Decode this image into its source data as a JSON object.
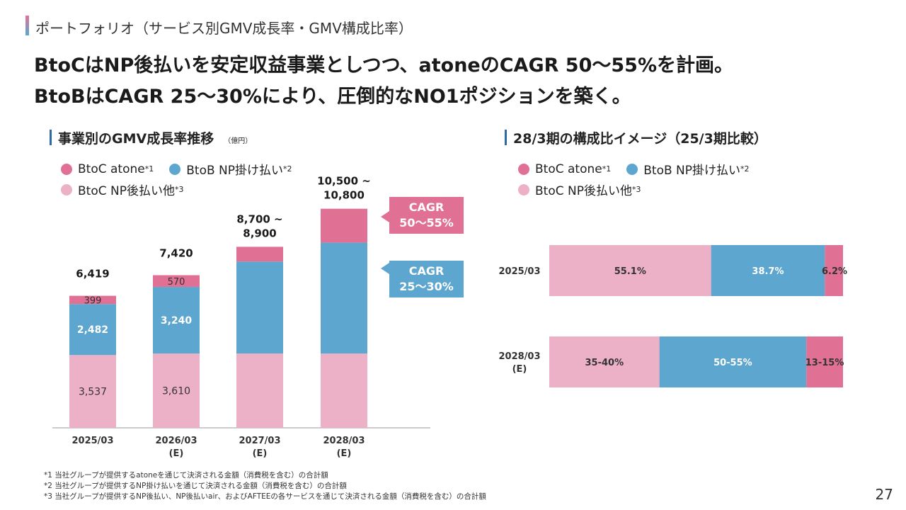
{
  "header": {
    "section_title": "ポートフォリオ（サービス別GMV成長率・GMV構成比率）",
    "headline_line1": "BtoCはNP後払いを安定収益事業としつつ、atoneのCAGR 50〜55%を計画。",
    "headline_line2": "BtoBはCAGR 25〜30%により、圧倒的なNO1ポジションを築く。"
  },
  "left_panel": {
    "title": "事業別のGMV成長率推移",
    "unit": "（億円）"
  },
  "right_panel": {
    "title": "28/3期の構成比イメージ（25/3期比較）"
  },
  "legend": {
    "atone": {
      "label": "BtoC atone",
      "note": "*1"
    },
    "btob": {
      "label": "BtoB NP掛け払い",
      "note": "*2"
    },
    "np": {
      "label": "BtoC NP後払い他",
      "note": "*3"
    }
  },
  "colors": {
    "atone": "#e07195",
    "btob": "#5ca6cf",
    "np": "#edb1c7"
  },
  "cagr": {
    "atone": {
      "line1": "CAGR",
      "line2": "50〜55%"
    },
    "btob": {
      "line1": "CAGR",
      "line2": "25〜30%"
    }
  },
  "chart_data": [
    {
      "type": "bar",
      "stacked": true,
      "categories": [
        "2025/03",
        "2026/03\n(E)",
        "2027/03\n(E)",
        "2028/03\n(E)"
      ],
      "series": [
        {
          "name": "BtoC NP後払い他",
          "values": [
            3537,
            3610,
            null,
            null
          ],
          "labels": [
            "3,537",
            "3,610",
            "",
            ""
          ]
        },
        {
          "name": "BtoB NP掛け払い",
          "values": [
            2482,
            3240,
            null,
            null
          ],
          "labels": [
            "2,482",
            "3,240",
            "",
            ""
          ]
        },
        {
          "name": "BtoC atone",
          "values": [
            399,
            570,
            null,
            null
          ],
          "labels": [
            "399",
            "570",
            "",
            ""
          ]
        }
      ],
      "totals": [
        "6,419",
        "7,420",
        "8,700 ~\n8,900",
        "10,500 ~\n10,800"
      ],
      "title": "事業別のGMV成長率推移",
      "ylim": [
        0,
        11500
      ]
    },
    {
      "type": "bar",
      "orientation": "horizontal",
      "stacked_percent": true,
      "categories": [
        "2025/03",
        "2028/03\n(E)"
      ],
      "series": [
        {
          "name": "BtoC NP後払い他",
          "values": [
            55.1,
            37.5
          ],
          "labels": [
            "55.1%",
            "35-40%"
          ]
        },
        {
          "name": "BtoB NP掛け払い",
          "values": [
            38.7,
            50
          ],
          "labels": [
            "38.7%",
            "50-55%"
          ]
        },
        {
          "name": "BtoC atone",
          "values": [
            6.2,
            12.5
          ],
          "labels": [
            "6.2%",
            "13-15%"
          ]
        }
      ],
      "title": "28/3期の構成比イメージ（25/3期比較）"
    }
  ],
  "footnotes": [
    "*1 当社グループが提供するatoneを通じて決済される金額（消費税を含む）の合計額",
    "*2 当社グループが提供するNP掛け払いを通じて決済される金額（消費税を含む）の合計額",
    "*3 当社グループが提供するNP後払い、NP後払いair、およびAFTEEの各サービスを通じて決済される金額（消費税を含む）の合計額"
  ],
  "page_number": "27"
}
